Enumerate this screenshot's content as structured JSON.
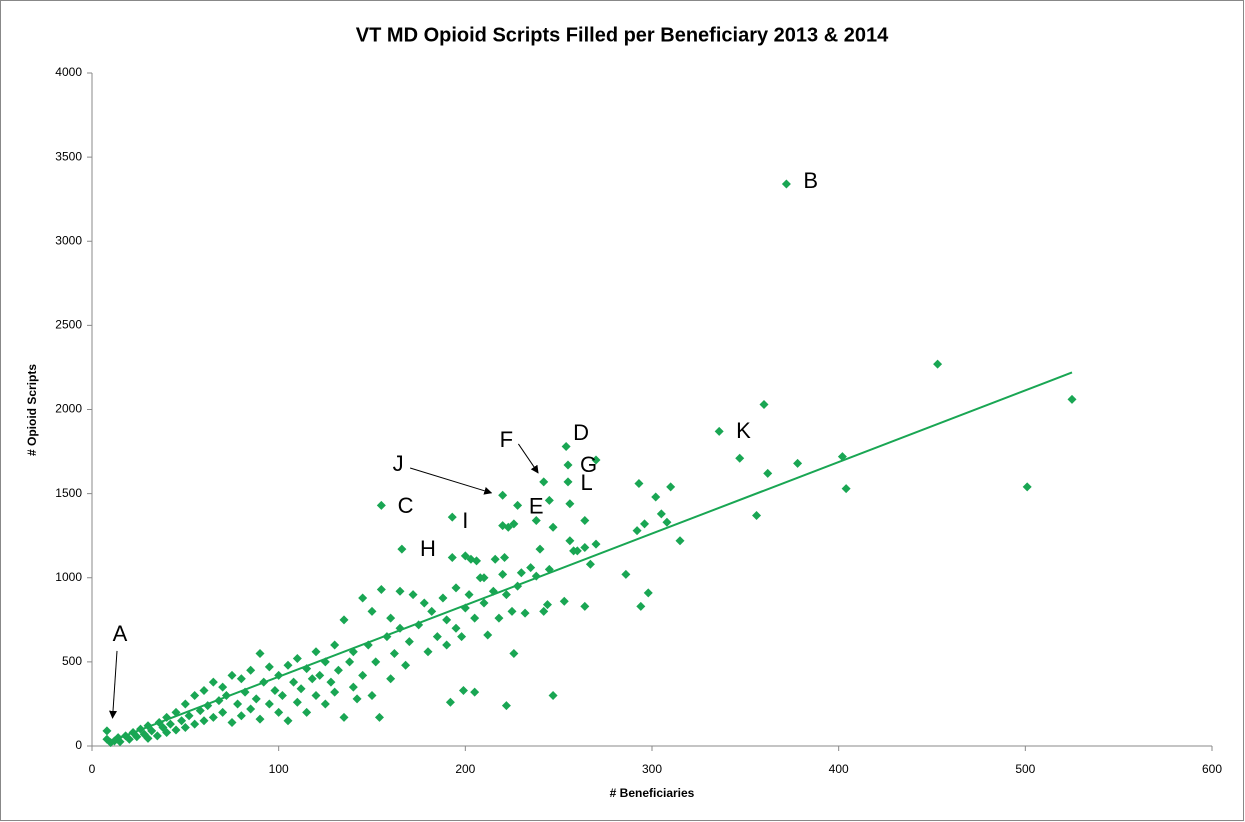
{
  "chart_data": {
    "type": "scatter",
    "title": "VT MD Opioid Scripts Filled per Beneficiary 2013 & 2014",
    "x_label": "# Beneficiaries",
    "y_label": "# Opioid Scripts",
    "color": "#19a653",
    "x": [
      372,
      453,
      525,
      501,
      360,
      336,
      347,
      362,
      378,
      402,
      404,
      356,
      310,
      315,
      293,
      302,
      305,
      308,
      296,
      292,
      298,
      294,
      286,
      254,
      255,
      255,
      270,
      242,
      220,
      228,
      220,
      226,
      238,
      245,
      256,
      264,
      247,
      256,
      258,
      264,
      270,
      267,
      264,
      253,
      244,
      247,
      222,
      226,
      205,
      199,
      192,
      155,
      166,
      193,
      193,
      200,
      203,
      206,
      216,
      221,
      223,
      210,
      8,
      8,
      10,
      12,
      14,
      15,
      18,
      20,
      22,
      24,
      26,
      28,
      30,
      30,
      32,
      35,
      36,
      38,
      40,
      40,
      42,
      45,
      45,
      48,
      50,
      50,
      52,
      55,
      55,
      58,
      60,
      60,
      62,
      65,
      65,
      68,
      70,
      70,
      72,
      75,
      75,
      78,
      80,
      80,
      82,
      85,
      85,
      88,
      90,
      90,
      92,
      95,
      95,
      98,
      100,
      100,
      102,
      105,
      105,
      108,
      110,
      110,
      112,
      115,
      115,
      118,
      120,
      120,
      122,
      125,
      125,
      128,
      130,
      130,
      132,
      135,
      135,
      138,
      140,
      140,
      142,
      145,
      145,
      148,
      150,
      150,
      152,
      154,
      155,
      158,
      160,
      160,
      162,
      165,
      165,
      168,
      170,
      172,
      175,
      178,
      180,
      182,
      185,
      188,
      190,
      190,
      195,
      195,
      198,
      200,
      202,
      205,
      208,
      210,
      212,
      215,
      218,
      220,
      222,
      225,
      228,
      230,
      232,
      235,
      238,
      240,
      242,
      245,
      260
    ],
    "values": [
      3340,
      2270,
      2060,
      1540,
      2030,
      1870,
      1710,
      1620,
      1680,
      1720,
      1530,
      1370,
      1540,
      1220,
      1560,
      1480,
      1380,
      1330,
      1320,
      1280,
      910,
      830,
      1020,
      1780,
      1670,
      1570,
      1700,
      1570,
      1490,
      1430,
      1310,
      1320,
      1340,
      1460,
      1440,
      1340,
      1300,
      1220,
      1160,
      1180,
      1200,
      1080,
      830,
      860,
      840,
      300,
      240,
      550,
      320,
      330,
      260,
      1430,
      1170,
      1360,
      1120,
      1130,
      1110,
      1100,
      1110,
      1120,
      1300,
      1000,
      40,
      90,
      20,
      30,
      50,
      25,
      60,
      40,
      80,
      55,
      100,
      70,
      45,
      120,
      90,
      60,
      140,
      110,
      80,
      170,
      130,
      95,
      200,
      150,
      110,
      250,
      180,
      130,
      300,
      210,
      150,
      330,
      240,
      170,
      380,
      270,
      200,
      350,
      300,
      140,
      420,
      250,
      180,
      400,
      320,
      220,
      450,
      280,
      160,
      550,
      380,
      250,
      470,
      330,
      200,
      420,
      300,
      150,
      480,
      380,
      260,
      520,
      340,
      200,
      460,
      400,
      300,
      560,
      420,
      250,
      500,
      380,
      320,
      600,
      450,
      170,
      750,
      500,
      350,
      560,
      280,
      420,
      880,
      600,
      300,
      800,
      500,
      170,
      930,
      650,
      400,
      760,
      550,
      700,
      920,
      480,
      620,
      900,
      720,
      850,
      560,
      800,
      650,
      880,
      600,
      750,
      700,
      940,
      650,
      820,
      900,
      760,
      1000,
      850,
      660,
      920,
      760,
      1020,
      900,
      800,
      950,
      1030,
      790,
      1060,
      1010,
      1170,
      800,
      1050,
      1160
    ],
    "trendline": {
      "x": [
        8,
        525
      ],
      "y": [
        20,
        2220
      ]
    },
    "xlim": [
      0,
      600
    ],
    "xticks": [
      0,
      100,
      200,
      300,
      400,
      500,
      600
    ],
    "ylim": [
      0,
      4000
    ],
    "yticks": [
      0,
      500,
      1000,
      1500,
      2000,
      2500,
      3000,
      3500,
      4000
    ],
    "annotations": [
      {
        "text": "A",
        "xy": [
          15,
          660
        ],
        "arrow": [
          11,
          166
        ]
      },
      {
        "text": "B",
        "xy": [
          385,
          3352
        ]
      },
      {
        "text": "C",
        "xy": [
          168,
          1420
        ]
      },
      {
        "text": "D",
        "xy": [
          262,
          1854
        ]
      },
      {
        "text": "E",
        "xy": [
          238,
          1415
        ]
      },
      {
        "text": "F",
        "xy": [
          222,
          1813
        ],
        "arrow": [
          239,
          1623
        ]
      },
      {
        "text": "G",
        "xy": [
          266,
          1664
        ]
      },
      {
        "text": "H",
        "xy": [
          180,
          1165
        ]
      },
      {
        "text": "I",
        "xy": [
          200,
          1331
        ]
      },
      {
        "text": "J",
        "xy": [
          164,
          1670
        ],
        "arrow": [
          214,
          1504
        ]
      },
      {
        "text": "K",
        "xy": [
          349,
          1866
        ]
      },
      {
        "text": "L",
        "xy": [
          265,
          1557
        ]
      }
    ]
  }
}
